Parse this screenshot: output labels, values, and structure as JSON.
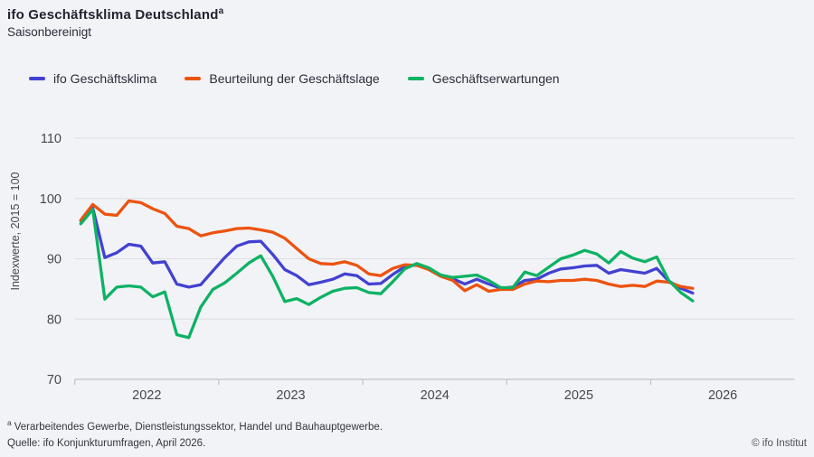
{
  "header": {
    "title": "ifo Geschäftsklima Deutschland",
    "title_superscript": "a",
    "subtitle": "Saisonbereinigt"
  },
  "legend": {
    "items": [
      {
        "label": "ifo Geschäftsklima",
        "color": "#4241d1"
      },
      {
        "label": "Beurteilung der Geschäftslage",
        "color": "#ec530e"
      },
      {
        "label": "Geschäftserwartungen",
        "color": "#0db264"
      }
    ]
  },
  "footer": {
    "footnote_marker": "a",
    "footnote": "Verarbeitendes Gewerbe, Dienstleistungssektor, Handel und Bauhauptgewerbe.",
    "source": "Quelle: ifo Konjunkturumfragen,  April 2026.",
    "copyright": "© ifo Institut"
  },
  "chart_data": {
    "type": "line",
    "title": "ifo Geschäftsklima Deutschland (saisonbereinigt)",
    "xlabel": "",
    "ylabel": "Indexwerte, 2015 = 100",
    "ylim": [
      70,
      110
    ],
    "y_ticks": [
      110,
      100,
      90,
      80,
      70
    ],
    "x_ticks_years": [
      "2022",
      "2023",
      "2024",
      "2025",
      "2026"
    ],
    "x_unit": "month",
    "x_start_month": "2022-01",
    "x_end_month": "2026-04",
    "x_axis_span_months": 60,
    "grid": "horizontal",
    "legend_position": "top",
    "series": [
      {
        "name": "ifo Geschäftsklima",
        "color": "#4241d1",
        "values": [
          96.3,
          98.4,
          90.2,
          91.0,
          92.4,
          92.1,
          89.3,
          89.5,
          85.8,
          85.3,
          85.7,
          88.0,
          90.2,
          92.1,
          92.8,
          92.9,
          90.7,
          88.2,
          87.2,
          85.7,
          86.1,
          86.6,
          87.5,
          87.2,
          85.8,
          85.9,
          87.4,
          88.7,
          89.0,
          88.4,
          87.2,
          86.7,
          85.8,
          86.6,
          85.8,
          85.1,
          85.3,
          86.4,
          86.6,
          87.6,
          88.3,
          88.5,
          88.8,
          88.9,
          87.6,
          88.2,
          87.9,
          87.6,
          88.4,
          86.3,
          85.1,
          84.3
        ]
      },
      {
        "name": "Beurteilung der Geschäftslage",
        "color": "#ec530e",
        "values": [
          96.4,
          99.0,
          97.4,
          97.2,
          99.6,
          99.3,
          98.3,
          97.5,
          95.4,
          95.0,
          93.8,
          94.3,
          94.6,
          95.0,
          95.1,
          94.8,
          94.4,
          93.4,
          91.7,
          90.0,
          89.2,
          89.1,
          89.5,
          88.9,
          87.5,
          87.2,
          88.4,
          89.0,
          88.9,
          88.2,
          87.1,
          86.4,
          84.7,
          85.7,
          84.6,
          84.9,
          84.9,
          85.8,
          86.3,
          86.2,
          86.4,
          86.4,
          86.6,
          86.4,
          85.8,
          85.4,
          85.6,
          85.4,
          86.3,
          86.1,
          85.4,
          85.1
        ]
      },
      {
        "name": "Geschäftserwartungen",
        "color": "#0db264",
        "values": [
          95.8,
          98.2,
          83.3,
          85.3,
          85.5,
          85.3,
          83.7,
          84.5,
          77.4,
          76.9,
          82.0,
          84.9,
          86.0,
          87.6,
          89.3,
          90.5,
          87.1,
          82.9,
          83.4,
          82.4,
          83.6,
          84.6,
          85.1,
          85.2,
          84.4,
          84.2,
          86.2,
          88.3,
          89.2,
          88.5,
          87.3,
          86.9,
          87.1,
          87.3,
          86.4,
          85.2,
          85.2,
          87.8,
          87.2,
          88.6,
          90.0,
          90.6,
          91.4,
          90.8,
          89.3,
          91.2,
          90.1,
          89.5,
          90.3,
          86.4,
          84.4,
          83.0
        ]
      }
    ]
  }
}
